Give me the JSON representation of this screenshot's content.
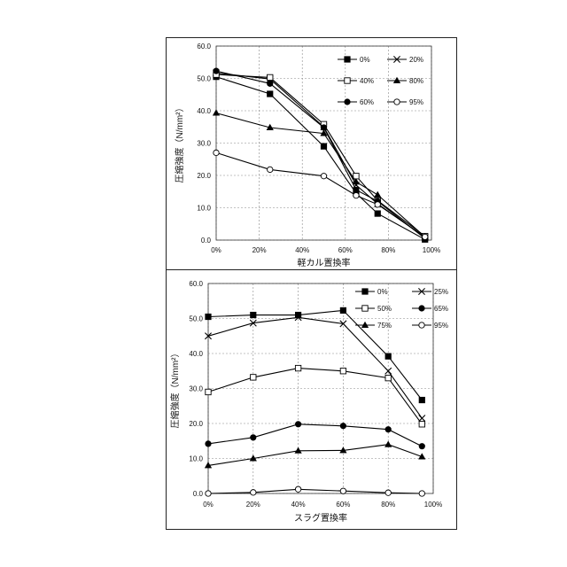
{
  "chart_data": [
    {
      "type": "line",
      "title": "",
      "xlabel": "軽カル置換率",
      "ylabel": "圧縮強度（N/mm²）",
      "x": [
        0,
        25,
        50,
        65,
        75,
        97
      ],
      "x_ticks": [
        0,
        20,
        40,
        60,
        80,
        100
      ],
      "x_tick_labels": [
        "0%",
        "20%",
        "40%",
        "60%",
        "80%",
        "100%"
      ],
      "xlim": [
        0,
        100
      ],
      "ylim": [
        0,
        60
      ],
      "y_ticks": [
        0,
        10,
        20,
        30,
        40,
        50,
        60
      ],
      "y_tick_labels": [
        "0.0",
        "10.0",
        "20.0",
        "30.0",
        "40.0",
        "50.0",
        "60.0"
      ],
      "grid": true,
      "legend_position": "top-right",
      "series": [
        {
          "name": "0%",
          "marker": "square-filled",
          "values": [
            50.5,
            45.2,
            29.0,
            14.5,
            8.2,
            0.2
          ]
        },
        {
          "name": "20%",
          "marker": "x",
          "values": [
            51.7,
            49.8,
            35.0,
            17.0,
            11.2,
            0.8
          ]
        },
        {
          "name": "40%",
          "marker": "square-open",
          "values": [
            51.2,
            50.3,
            35.8,
            19.8,
            12.2,
            1.2
          ]
        },
        {
          "name": "80%",
          "marker": "triangle-filled",
          "values": [
            39.3,
            34.8,
            33.0,
            18.0,
            14.0,
            1.0
          ]
        },
        {
          "name": "60%",
          "marker": "circle-filled",
          "values": [
            52.3,
            48.4,
            34.8,
            15.5,
            12.0,
            0.5
          ]
        },
        {
          "name": "95%",
          "marker": "circle-open",
          "values": [
            27.0,
            21.8,
            19.8,
            13.8,
            11.0,
            1.0
          ]
        }
      ]
    },
    {
      "type": "line",
      "title": "",
      "xlabel": "スラグ置換率",
      "ylabel": "圧縮強度（N/mm²）",
      "x": [
        0,
        20,
        40,
        60,
        80,
        95
      ],
      "x_ticks": [
        0,
        20,
        40,
        60,
        80,
        100
      ],
      "x_tick_labels": [
        "0%",
        "20%",
        "40%",
        "60%",
        "80%",
        "100%"
      ],
      "xlim": [
        0,
        100
      ],
      "ylim": [
        0,
        60
      ],
      "y_ticks": [
        0,
        10,
        20,
        30,
        40,
        50,
        60
      ],
      "y_tick_labels": [
        "0.0",
        "10.0",
        "20.0",
        "30.0",
        "40.0",
        "50.0",
        "60.0"
      ],
      "grid": true,
      "legend_position": "top-right",
      "series": [
        {
          "name": "0%",
          "marker": "square-filled",
          "values": [
            50.5,
            51.0,
            51.0,
            52.3,
            39.2,
            26.7
          ]
        },
        {
          "name": "25%",
          "marker": "x",
          "values": [
            45.0,
            48.7,
            50.3,
            48.5,
            35.0,
            21.5
          ]
        },
        {
          "name": "50%",
          "marker": "square-open",
          "values": [
            29.0,
            33.2,
            35.8,
            35.0,
            33.0,
            19.8
          ]
        },
        {
          "name": "65%",
          "marker": "circle-filled",
          "values": [
            14.2,
            16.0,
            19.8,
            19.3,
            18.3,
            13.5
          ]
        },
        {
          "name": "75%",
          "marker": "triangle-filled",
          "values": [
            8.0,
            10.0,
            12.2,
            12.3,
            14.0,
            10.5
          ]
        },
        {
          "name": "95%",
          "marker": "circle-open",
          "values": [
            0.0,
            0.3,
            1.2,
            0.7,
            0.2,
            0.0
          ]
        }
      ]
    }
  ]
}
